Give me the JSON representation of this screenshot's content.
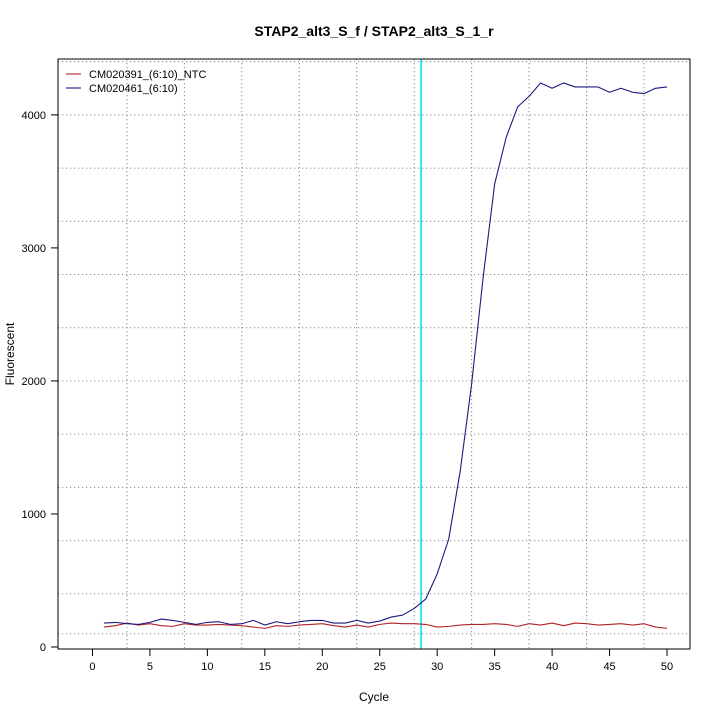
{
  "chart_data": {
    "type": "line",
    "title": "STAP2_alt3_S_f / STAP2_alt3_S_1_r",
    "xlabel": "Cycle",
    "ylabel": "Fluorescent",
    "xlim": [
      -3,
      52
    ],
    "ylim": [
      -15,
      4420
    ],
    "x_ticks": [
      0,
      5,
      10,
      15,
      20,
      25,
      30,
      35,
      40,
      45,
      50
    ],
    "y_ticks": [
      0,
      1000,
      2000,
      3000,
      4000
    ],
    "x_grid": [
      3,
      8,
      13,
      18,
      23,
      28,
      33,
      38,
      43,
      48
    ],
    "y_grid": [
      100,
      400,
      800,
      1200,
      1600,
      2000,
      2400,
      2800,
      3200,
      3600,
      4000,
      4400
    ],
    "threshold_x": 28.6,
    "threshold_color": "#00e5ee",
    "grid": true,
    "legend_position": "top-left",
    "x": [
      1,
      2,
      3,
      4,
      5,
      6,
      7,
      8,
      9,
      10,
      11,
      12,
      13,
      14,
      15,
      16,
      17,
      18,
      19,
      20,
      21,
      22,
      23,
      24,
      25,
      26,
      27,
      28,
      29,
      30,
      31,
      32,
      33,
      34,
      35,
      36,
      37,
      38,
      39,
      40,
      41,
      42,
      43,
      44,
      45,
      46,
      47,
      48,
      49,
      50
    ],
    "series": [
      {
        "name": "CM020391_(6:10)_NTC",
        "color": "#b22222",
        "values": [
          150,
          160,
          180,
          165,
          175,
          160,
          155,
          175,
          165,
          165,
          170,
          165,
          160,
          150,
          140,
          160,
          155,
          165,
          170,
          175,
          160,
          150,
          165,
          150,
          170,
          180,
          175,
          175,
          170,
          150,
          155,
          165,
          170,
          170,
          175,
          170,
          155,
          175,
          165,
          180,
          160,
          180,
          175,
          165,
          170,
          175,
          165,
          175,
          150,
          140
        ]
      },
      {
        "name": "CM020461_(6:10)",
        "color": "#1a1a80",
        "values": [
          180,
          185,
          175,
          170,
          185,
          210,
          200,
          185,
          170,
          185,
          190,
          170,
          175,
          200,
          165,
          190,
          175,
          190,
          200,
          200,
          180,
          180,
          200,
          180,
          195,
          225,
          240,
          290,
          360,
          550,
          810,
          1320,
          1980,
          2780,
          3480,
          3830,
          4060,
          4140,
          4240,
          4200,
          4240,
          4210,
          4210,
          4210,
          4170,
          4200,
          4170,
          4160,
          4200,
          4210
        ]
      }
    ]
  }
}
